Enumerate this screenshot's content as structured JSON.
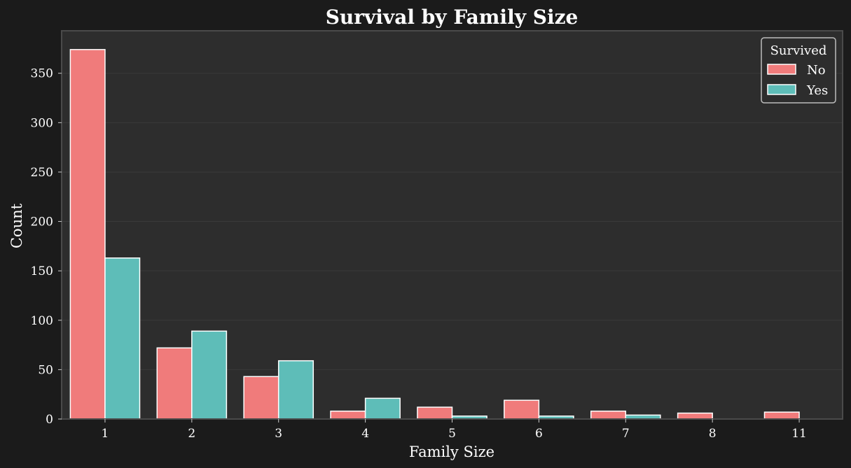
{
  "chart_data": {
    "type": "bar",
    "title": "Survival by Family Size",
    "xlabel": "Family Size",
    "ylabel": "Count",
    "categories": [
      "1",
      "2",
      "3",
      "4",
      "5",
      "6",
      "7",
      "8",
      "11"
    ],
    "series": [
      {
        "name": "No",
        "values": [
          374,
          72,
          43,
          8,
          12,
          19,
          8,
          6,
          7
        ],
        "color": "#f07b7b"
      },
      {
        "name": "Yes",
        "values": [
          163,
          89,
          59,
          21,
          3,
          3,
          4,
          0,
          0
        ],
        "color": "#5ebdb8"
      }
    ],
    "ylim": [
      0,
      393
    ],
    "yticks": [
      0,
      50,
      100,
      150,
      200,
      250,
      300,
      350
    ],
    "grid": true,
    "legend": {
      "title": "Survived",
      "placement": "top-right"
    },
    "colors": {
      "figure_background": "#1b1b1b",
      "plot_background": "#2d2d2d",
      "text": "#ffffff",
      "bar_edge": "#ffffff"
    }
  }
}
